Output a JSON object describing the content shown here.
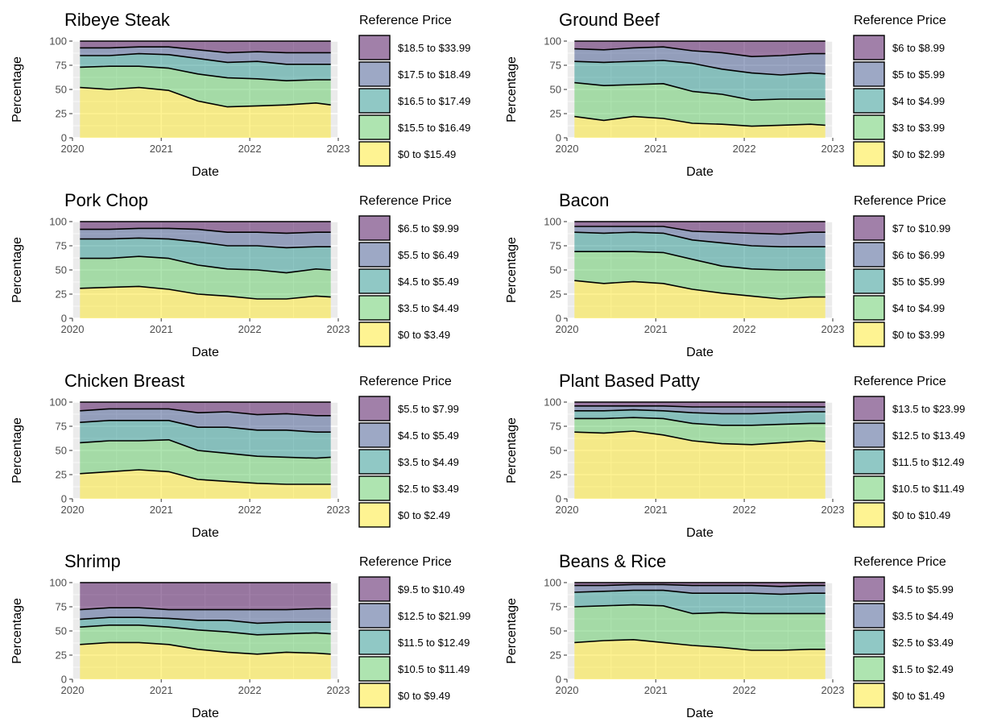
{
  "colors": {
    "band_1": "#FDE725",
    "band_2": "#5EC962",
    "band_3": "#21918C",
    "band_4": "#3B528B",
    "band_5": "#440154",
    "panel_background": "#EBEBEB",
    "gridline": "#FFFFFF",
    "boundary_line": "#000000"
  },
  "chart_data": [
    {
      "type": "area",
      "title": "Ribeye Steak",
      "xlabel": "Date",
      "ylabel": "Percentage",
      "xlim": [
        "2020-01-01",
        "2023-01-01"
      ],
      "ylim": [
        0,
        100
      ],
      "x_ticks": [
        "2020",
        "2021",
        "2022",
        "2023"
      ],
      "y_ticks": [
        "0",
        "25",
        "50",
        "75",
        "100"
      ],
      "grid": true,
      "stacking": "fill",
      "legend": {
        "title": "Reference Price",
        "position": "right",
        "entries": [
          "$18.5 to $33.99",
          "$17.5 to $18.49",
          "$16.5 to $17.49",
          "$15.5 to $16.49",
          "$0 to $15.49"
        ]
      },
      "x": [
        "2020-02",
        "2020-06",
        "2020-10",
        "2021-02",
        "2021-06",
        "2021-10",
        "2022-02",
        "2022-06",
        "2022-10",
        "2022-12"
      ],
      "series": [
        {
          "name": "$0 to $15.49",
          "values": [
            52,
            50,
            52,
            49,
            38,
            32,
            33,
            34,
            36,
            34
          ]
        },
        {
          "name": "$15.5 to $16.49",
          "values": [
            21,
            24,
            22,
            23,
            28,
            30,
            28,
            25,
            24,
            26
          ]
        },
        {
          "name": "$16.5 to $17.49",
          "values": [
            12,
            11,
            13,
            14,
            16,
            16,
            18,
            17,
            16,
            16
          ]
        },
        {
          "name": "$17.5 to $18.49",
          "values": [
            8,
            8,
            7,
            8,
            9,
            10,
            10,
            12,
            12,
            12
          ]
        },
        {
          "name": "$18.5 to $33.99",
          "values": [
            7,
            7,
            6,
            6,
            9,
            12,
            11,
            12,
            12,
            12
          ]
        }
      ]
    },
    {
      "type": "area",
      "title": "Ground Beef",
      "xlabel": "Date",
      "ylabel": "Percentage",
      "xlim": [
        "2020-01-01",
        "2023-01-01"
      ],
      "ylim": [
        0,
        100
      ],
      "x_ticks": [
        "2020",
        "2021",
        "2022",
        "2023"
      ],
      "y_ticks": [
        "0",
        "25",
        "50",
        "75",
        "100"
      ],
      "grid": true,
      "stacking": "fill",
      "legend": {
        "title": "Reference Price",
        "position": "right",
        "entries": [
          "$6 to $8.99",
          "$5 to $5.99",
          "$4 to $4.99",
          "$3 to $3.99",
          "$0 to $2.99"
        ]
      },
      "x": [
        "2020-02",
        "2020-06",
        "2020-10",
        "2021-02",
        "2021-06",
        "2021-10",
        "2022-02",
        "2022-06",
        "2022-10",
        "2022-12"
      ],
      "series": [
        {
          "name": "$0 to $2.99",
          "values": [
            22,
            18,
            22,
            20,
            15,
            14,
            12,
            13,
            14,
            13
          ]
        },
        {
          "name": "$3 to $3.99",
          "values": [
            35,
            36,
            33,
            36,
            33,
            31,
            27,
            27,
            26,
            27
          ]
        },
        {
          "name": "$4 to $4.99",
          "values": [
            22,
            24,
            24,
            24,
            29,
            26,
            28,
            25,
            27,
            26
          ]
        },
        {
          "name": "$5 to $5.99",
          "values": [
            13,
            13,
            14,
            14,
            13,
            17,
            17,
            20,
            20,
            21
          ]
        },
        {
          "name": "$6 to $8.99",
          "values": [
            8,
            9,
            7,
            6,
            10,
            12,
            16,
            15,
            13,
            13
          ]
        }
      ]
    },
    {
      "type": "area",
      "title": "Pork Chop",
      "xlabel": "Date",
      "ylabel": "Percentage",
      "xlim": [
        "2020-01-01",
        "2023-01-01"
      ],
      "ylim": [
        0,
        100
      ],
      "x_ticks": [
        "2020",
        "2021",
        "2022",
        "2023"
      ],
      "y_ticks": [
        "0",
        "25",
        "50",
        "75",
        "100"
      ],
      "grid": true,
      "stacking": "fill",
      "legend": {
        "title": "Reference Price",
        "position": "right",
        "entries": [
          "$6.5 to $9.99",
          "$5.5 to $6.49",
          "$4.5 to $5.49",
          "$3.5 to $4.49",
          "$0 to $3.49"
        ]
      },
      "x": [
        "2020-02",
        "2020-06",
        "2020-10",
        "2021-02",
        "2021-06",
        "2021-10",
        "2022-02",
        "2022-06",
        "2022-10",
        "2022-12"
      ],
      "series": [
        {
          "name": "$0 to $3.49",
          "values": [
            31,
            32,
            33,
            30,
            25,
            23,
            20,
            20,
            23,
            22
          ]
        },
        {
          "name": "$3.5 to $4.49",
          "values": [
            31,
            30,
            31,
            32,
            30,
            28,
            30,
            27,
            28,
            28
          ]
        },
        {
          "name": "$4.5 to $5.49",
          "values": [
            20,
            20,
            19,
            20,
            24,
            24,
            25,
            26,
            23,
            24
          ]
        },
        {
          "name": "$5.5 to $6.49",
          "values": [
            10,
            10,
            10,
            11,
            13,
            14,
            14,
            15,
            15,
            15
          ]
        },
        {
          "name": "$6.5 to $9.99",
          "values": [
            8,
            8,
            7,
            7,
            8,
            11,
            11,
            12,
            11,
            11
          ]
        }
      ]
    },
    {
      "type": "area",
      "title": "Bacon",
      "xlabel": "Date",
      "ylabel": "Percentage",
      "xlim": [
        "2020-01-01",
        "2023-01-01"
      ],
      "ylim": [
        0,
        100
      ],
      "x_ticks": [
        "2020",
        "2021",
        "2022",
        "2023"
      ],
      "y_ticks": [
        "0",
        "25",
        "50",
        "75",
        "100"
      ],
      "grid": true,
      "stacking": "fill",
      "legend": {
        "title": "Reference Price",
        "position": "right",
        "entries": [
          "$7 to $10.99",
          "$6 to $6.99",
          "$5 to $5.99",
          "$4 to $4.99",
          "$0 to $3.99"
        ]
      },
      "x": [
        "2020-02",
        "2020-06",
        "2020-10",
        "2021-02",
        "2021-06",
        "2021-10",
        "2022-02",
        "2022-06",
        "2022-10",
        "2022-12"
      ],
      "series": [
        {
          "name": "$0 to $3.99",
          "values": [
            39,
            36,
            38,
            36,
            30,
            26,
            23,
            20,
            22,
            22
          ]
        },
        {
          "name": "$4 to $4.99",
          "values": [
            30,
            33,
            31,
            32,
            31,
            28,
            28,
            30,
            28,
            28
          ]
        },
        {
          "name": "$5 to $5.99",
          "values": [
            20,
            19,
            20,
            20,
            20,
            24,
            24,
            24,
            24,
            24
          ]
        },
        {
          "name": "$6 to $6.99",
          "values": [
            6,
            7,
            6,
            7,
            9,
            11,
            13,
            13,
            15,
            15
          ]
        },
        {
          "name": "$7 to $10.99",
          "values": [
            5,
            5,
            5,
            5,
            10,
            11,
            12,
            13,
            11,
            11
          ]
        }
      ]
    },
    {
      "type": "area",
      "title": "Chicken Breast",
      "xlabel": "Date",
      "ylabel": "Percentage",
      "xlim": [
        "2020-01-01",
        "2023-01-01"
      ],
      "ylim": [
        0,
        100
      ],
      "x_ticks": [
        "2020",
        "2021",
        "2022",
        "2023"
      ],
      "y_ticks": [
        "0",
        "25",
        "50",
        "75",
        "100"
      ],
      "grid": true,
      "stacking": "fill",
      "legend": {
        "title": "Reference Price",
        "position": "right",
        "entries": [
          "$5.5 to $7.99",
          "$4.5 to $5.49",
          "$3.5 to $4.49",
          "$2.5 to $3.49",
          "$0 to $2.49"
        ]
      },
      "x": [
        "2020-02",
        "2020-06",
        "2020-10",
        "2021-02",
        "2021-06",
        "2021-10",
        "2022-02",
        "2022-06",
        "2022-10",
        "2022-12"
      ],
      "series": [
        {
          "name": "$0 to $2.49",
          "values": [
            26,
            28,
            30,
            28,
            20,
            18,
            16,
            15,
            15,
            15
          ]
        },
        {
          "name": "$2.5 to $3.49",
          "values": [
            32,
            32,
            30,
            33,
            30,
            29,
            28,
            28,
            27,
            28
          ]
        },
        {
          "name": "$3.5 to $4.49",
          "values": [
            21,
            21,
            21,
            20,
            24,
            27,
            27,
            28,
            27,
            26
          ]
        },
        {
          "name": "$4.5 to $5.49",
          "values": [
            12,
            12,
            12,
            12,
            15,
            16,
            16,
            17,
            17,
            17
          ]
        },
        {
          "name": "$5.5 to $7.99",
          "values": [
            9,
            7,
            7,
            7,
            11,
            10,
            13,
            12,
            14,
            14
          ]
        }
      ]
    },
    {
      "type": "area",
      "title": "Plant Based Patty",
      "xlabel": "Date",
      "ylabel": "Percentage",
      "xlim": [
        "2020-01-01",
        "2023-01-01"
      ],
      "ylim": [
        0,
        100
      ],
      "x_ticks": [
        "2020",
        "2021",
        "2022",
        "2023"
      ],
      "y_ticks": [
        "0",
        "25",
        "50",
        "75",
        "100"
      ],
      "grid": true,
      "stacking": "fill",
      "legend": {
        "title": "Reference Price",
        "position": "right",
        "entries": [
          "$13.5 to $23.99",
          "$12.5 to $13.49",
          "$11.5 to $12.49",
          "$10.5 to $11.49",
          "$0 to $10.49"
        ]
      },
      "x": [
        "2020-02",
        "2020-06",
        "2020-10",
        "2021-02",
        "2021-06",
        "2021-10",
        "2022-02",
        "2022-06",
        "2022-10",
        "2022-12"
      ],
      "series": [
        {
          "name": "$0 to $10.49",
          "values": [
            69,
            68,
            70,
            66,
            60,
            57,
            56,
            58,
            60,
            59
          ]
        },
        {
          "name": "$10.5 to $11.49",
          "values": [
            14,
            15,
            14,
            17,
            18,
            19,
            20,
            19,
            18,
            19
          ]
        },
        {
          "name": "$11.5 to $12.49",
          "values": [
            8,
            8,
            8,
            8,
            11,
            12,
            12,
            12,
            12,
            12
          ]
        },
        {
          "name": "$12.5 to $13.49",
          "values": [
            5,
            5,
            4,
            5,
            6,
            7,
            7,
            6,
            5,
            5
          ]
        },
        {
          "name": "$13.5 to $23.99",
          "values": [
            4,
            4,
            4,
            4,
            5,
            5,
            5,
            5,
            5,
            5
          ]
        }
      ]
    },
    {
      "type": "area",
      "title": "Shrimp",
      "xlabel": "Date",
      "ylabel": "Percentage",
      "xlim": [
        "2020-01-01",
        "2023-01-01"
      ],
      "ylim": [
        0,
        100
      ],
      "x_ticks": [
        "2020",
        "2021",
        "2022",
        "2023"
      ],
      "y_ticks": [
        "0",
        "25",
        "50",
        "75",
        "100"
      ],
      "grid": true,
      "stacking": "fill",
      "legend": {
        "title": "Reference Price",
        "position": "right",
        "entries": [
          "$9.5 to $10.49",
          "$12.5 to $21.99",
          "$11.5 to $12.49",
          "$10.5 to $11.49",
          "$0 to $9.49"
        ]
      },
      "x": [
        "2020-02",
        "2020-06",
        "2020-10",
        "2021-02",
        "2021-06",
        "2021-10",
        "2022-02",
        "2022-06",
        "2022-10",
        "2022-12"
      ],
      "series": [
        {
          "name": "$0 to $9.49",
          "values": [
            36,
            38,
            38,
            36,
            31,
            28,
            26,
            28,
            27,
            26
          ]
        },
        {
          "name": "$10.5 to $11.49",
          "values": [
            18,
            18,
            18,
            18,
            20,
            21,
            20,
            19,
            21,
            21
          ]
        },
        {
          "name": "$11.5 to $12.49",
          "values": [
            8,
            8,
            8,
            9,
            10,
            12,
            12,
            12,
            11,
            12
          ]
        },
        {
          "name": "$12.5 to $21.99",
          "values": [
            10,
            10,
            10,
            9,
            11,
            11,
            14,
            13,
            14,
            14
          ]
        },
        {
          "name": "$9.5 to $10.49",
          "values": [
            28,
            26,
            26,
            28,
            28,
            28,
            28,
            28,
            27,
            27
          ]
        }
      ]
    },
    {
      "type": "area",
      "title": "Beans & Rice",
      "xlabel": "Date",
      "ylabel": "Percentage",
      "xlim": [
        "2020-01-01",
        "2023-01-01"
      ],
      "ylim": [
        0,
        100
      ],
      "x_ticks": [
        "2020",
        "2021",
        "2022",
        "2023"
      ],
      "y_ticks": [
        "0",
        "25",
        "50",
        "75",
        "100"
      ],
      "grid": true,
      "stacking": "fill",
      "legend": {
        "title": "Reference Price",
        "position": "right",
        "entries": [
          "$4.5 to $5.99",
          "$3.5 to $4.49",
          "$2.5 to $3.49",
          "$1.5 to $2.49",
          "$0 to $1.49"
        ]
      },
      "x": [
        "2020-02",
        "2020-06",
        "2020-10",
        "2021-02",
        "2021-06",
        "2021-10",
        "2022-02",
        "2022-06",
        "2022-10",
        "2022-12"
      ],
      "series": [
        {
          "name": "$0 to $1.49",
          "values": [
            38,
            40,
            41,
            38,
            35,
            33,
            30,
            30,
            31,
            31
          ]
        },
        {
          "name": "$1.5 to $2.49",
          "values": [
            37,
            36,
            36,
            38,
            33,
            36,
            38,
            38,
            37,
            37
          ]
        },
        {
          "name": "$2.5 to $3.49",
          "values": [
            15,
            15,
            15,
            16,
            21,
            20,
            21,
            20,
            21,
            21
          ]
        },
        {
          "name": "$3.5 to $4.49",
          "values": [
            7,
            6,
            6,
            6,
            8,
            8,
            8,
            8,
            8,
            8
          ]
        },
        {
          "name": "$4.5 to $5.99",
          "values": [
            3,
            3,
            2,
            2,
            3,
            3,
            3,
            4,
            3,
            3
          ]
        }
      ]
    }
  ]
}
